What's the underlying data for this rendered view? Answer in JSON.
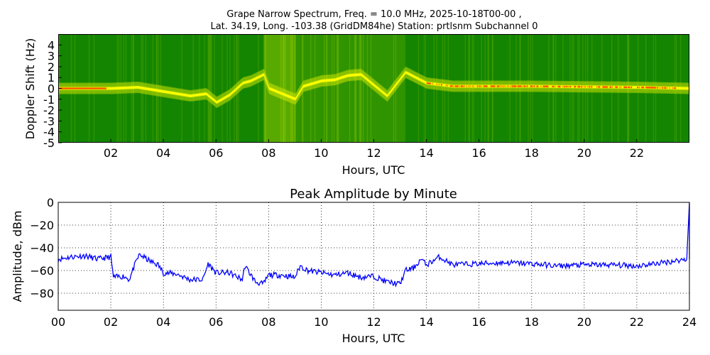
{
  "chart_data": [
    {
      "type": "heatmap",
      "title_line1": "Grape Narrow Spectrum, Freq. = 10.0 MHz, 2025-10-18T00-00 ,",
      "title_line2": "Lat.  34.19, Long. -103.38 (GridDM84he) Station: prtlsnm Subchannel 0",
      "xlabel": "Hours, UTC",
      "ylabel": "Doppler Shift (Hz)",
      "xlim": [
        0,
        24
      ],
      "ylim": [
        -5,
        5
      ],
      "xticks": [
        "02",
        "04",
        "06",
        "08",
        "10",
        "12",
        "14",
        "16",
        "18",
        "20",
        "22"
      ],
      "yticks": [
        "4",
        "3",
        "2",
        "1",
        "0",
        "-1",
        "-2",
        "-3",
        "-4",
        "-5"
      ],
      "colors": {
        "background": "#007a00",
        "mid": "#9acd00",
        "high": "#ffff00",
        "peak": "#ff3000"
      },
      "doppler_trace": [
        [
          0,
          0
        ],
        [
          2,
          0
        ],
        [
          3,
          0.1
        ],
        [
          4,
          -0.3
        ],
        [
          5,
          -0.7
        ],
        [
          5.6,
          -0.5
        ],
        [
          6,
          -1.3
        ],
        [
          6.5,
          -0.6
        ],
        [
          7,
          0.5
        ],
        [
          7.3,
          0.7
        ],
        [
          7.8,
          1.3
        ],
        [
          8,
          0
        ],
        [
          9,
          -1
        ],
        [
          9.3,
          0.2
        ],
        [
          10,
          0.7
        ],
        [
          10.5,
          0.8
        ],
        [
          11,
          1.2
        ],
        [
          11.5,
          1.3
        ],
        [
          12,
          0.3
        ],
        [
          12.5,
          -0.7
        ],
        [
          13.2,
          1.5
        ],
        [
          14,
          0.5
        ],
        [
          15,
          0.2
        ],
        [
          18,
          0.2
        ],
        [
          22,
          0.1
        ],
        [
          24,
          0
        ]
      ]
    },
    {
      "type": "line",
      "title": "Peak Amplitude by Minute",
      "xlabel": "Hours, UTC",
      "ylabel": "Amplitude, dBm",
      "xlim": [
        0,
        24
      ],
      "ylim": [
        -95,
        0
      ],
      "grid": true,
      "xticks": [
        "00",
        "02",
        "04",
        "06",
        "08",
        "10",
        "12",
        "14",
        "16",
        "18",
        "20",
        "22",
        "24"
      ],
      "yticks": [
        "0",
        "−20",
        "−40",
        "−60",
        "−80"
      ],
      "series": [
        {
          "name": "Peak Amplitude",
          "color": "#0000ff",
          "x": [
            0,
            0.5,
            1,
            1.5,
            2,
            2.1,
            2.5,
            2.7,
            3,
            3.1,
            3.5,
            3.8,
            4,
            4.5,
            5,
            5.5,
            5.7,
            6,
            6.5,
            7,
            7.1,
            7.5,
            7.8,
            8,
            8.5,
            9,
            9.2,
            9.5,
            10,
            10.5,
            11,
            11.5,
            12,
            12.5,
            13,
            13.2,
            13.5,
            13.8,
            14,
            14.5,
            15,
            16,
            17,
            18,
            19,
            20,
            21,
            22,
            23,
            23.9,
            24
          ],
          "y": [
            -50,
            -48,
            -47,
            -50,
            -48,
            -66,
            -65,
            -68,
            -50,
            -46,
            -52,
            -55,
            -62,
            -63,
            -68,
            -68,
            -54,
            -62,
            -62,
            -68,
            -56,
            -70,
            -72,
            -64,
            -64,
            -66,
            -56,
            -60,
            -62,
            -64,
            -62,
            -66,
            -65,
            -70,
            -72,
            -60,
            -58,
            -50,
            -55,
            -48,
            -55,
            -54,
            -53,
            -54,
            -56,
            -55,
            -55,
            -56,
            -53,
            -50,
            0
          ]
        }
      ]
    }
  ]
}
